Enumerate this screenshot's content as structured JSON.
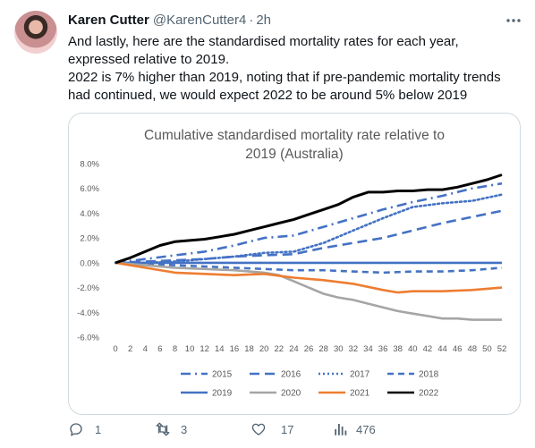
{
  "tweet": {
    "author_name": "Karen Cutter",
    "handle": "@KarenCutter4",
    "separator": "·",
    "time": "2h",
    "text_line1": "And lastly, here are the standardised mortality rates for each year, expressed relative to 2019.",
    "text_line2": "2022 is 7% higher than 2019, noting that if pre-pandemic mortality trends had continued, we would expect 2022 to be around 5% below 2019"
  },
  "actions": {
    "reply_count": "1",
    "retweet_count": "3",
    "like_count": "17",
    "views_count": "476"
  },
  "icons": {
    "more": "more-icon",
    "reply": "reply-icon",
    "retweet": "retweet-icon",
    "like": "heart-icon",
    "views": "analytics-icon"
  },
  "chart_data": {
    "type": "line",
    "title_line1": "Cumulative standardised mortality rate relative to",
    "title_line2": "2019 (Australia)",
    "xlabel": "",
    "ylabel": "",
    "x_ticks": [
      "0",
      "2",
      "4",
      "6",
      "8",
      "10",
      "12",
      "14",
      "16",
      "18",
      "20",
      "22",
      "24",
      "26",
      "28",
      "30",
      "32",
      "34",
      "36",
      "38",
      "40",
      "42",
      "44",
      "46",
      "48",
      "50",
      "52"
    ],
    "y_ticks": [
      "8.0%",
      "6.0%",
      "4.0%",
      "2.0%",
      "0.0%",
      "-2.0%",
      "-4.0%",
      "-6.0%"
    ],
    "ylim": [
      -6.0,
      8.0
    ],
    "xlim": [
      0,
      52
    ],
    "grid": false,
    "legend_placement": "bottom",
    "series": [
      {
        "name": "2015",
        "color": "#4472c4",
        "dash": "dashdot",
        "x": [
          0,
          4,
          8,
          12,
          16,
          20,
          24,
          28,
          32,
          36,
          40,
          44,
          48,
          52
        ],
        "y": [
          0,
          0.3,
          0.6,
          0.9,
          1.4,
          2.0,
          2.2,
          2.9,
          3.6,
          4.3,
          4.9,
          5.4,
          6.0,
          6.4
        ]
      },
      {
        "name": "2016",
        "color": "#4472c4",
        "dash": "dash",
        "x": [
          0,
          4,
          8,
          12,
          16,
          20,
          24,
          28,
          32,
          36,
          40,
          44,
          48,
          52
        ],
        "y": [
          0,
          0.1,
          0.2,
          0.3,
          0.5,
          0.6,
          0.7,
          1.2,
          1.6,
          2.0,
          2.6,
          3.2,
          3.7,
          4.2
        ]
      },
      {
        "name": "2017",
        "color": "#4472c4",
        "dash": "dot",
        "x": [
          0,
          4,
          8,
          12,
          16,
          20,
          24,
          28,
          32,
          36,
          40,
          44,
          48,
          52
        ],
        "y": [
          0,
          0.0,
          0.1,
          0.3,
          0.5,
          0.8,
          0.9,
          1.6,
          2.6,
          3.6,
          4.5,
          4.8,
          5.0,
          5.5
        ]
      },
      {
        "name": "2018",
        "color": "#4472c4",
        "dash": "dashsmall",
        "x": [
          0,
          4,
          8,
          12,
          16,
          20,
          24,
          28,
          32,
          36,
          40,
          44,
          48,
          52
        ],
        "y": [
          0,
          -0.1,
          -0.2,
          -0.3,
          -0.4,
          -0.5,
          -0.6,
          -0.6,
          -0.7,
          -0.8,
          -0.7,
          -0.7,
          -0.6,
          -0.4
        ]
      },
      {
        "name": "2019",
        "color": "#4472c4",
        "dash": "solid",
        "x": [
          0,
          52
        ],
        "y": [
          0,
          0
        ]
      },
      {
        "name": "2020",
        "color": "#a5a5a5",
        "dash": "solid",
        "x": [
          0,
          4,
          8,
          12,
          16,
          20,
          22,
          24,
          26,
          28,
          30,
          32,
          34,
          36,
          38,
          40,
          42,
          44,
          46,
          48,
          50,
          52
        ],
        "y": [
          0,
          -0.2,
          -0.4,
          -0.5,
          -0.6,
          -0.8,
          -1.0,
          -1.5,
          -2.0,
          -2.5,
          -2.8,
          -3.0,
          -3.3,
          -3.6,
          -3.9,
          -4.1,
          -4.3,
          -4.5,
          -4.5,
          -4.6,
          -4.6,
          -4.6
        ]
      },
      {
        "name": "2021",
        "color": "#ed7d31",
        "dash": "solid",
        "x": [
          0,
          4,
          8,
          12,
          16,
          20,
          24,
          28,
          32,
          36,
          38,
          40,
          44,
          48,
          52
        ],
        "y": [
          0,
          -0.4,
          -0.8,
          -0.9,
          -1.0,
          -0.9,
          -1.2,
          -1.4,
          -1.7,
          -2.2,
          -2.4,
          -2.3,
          -2.3,
          -2.2,
          -2.0
        ]
      },
      {
        "name": "2022",
        "color": "#000000",
        "dash": "solid",
        "x": [
          0,
          2,
          4,
          6,
          8,
          10,
          12,
          14,
          16,
          18,
          20,
          22,
          24,
          26,
          28,
          30,
          32,
          34,
          36,
          38,
          40,
          42,
          44,
          46,
          48,
          50,
          52
        ],
        "y": [
          0,
          0.4,
          0.9,
          1.4,
          1.7,
          1.8,
          1.9,
          2.1,
          2.3,
          2.6,
          2.9,
          3.2,
          3.5,
          3.9,
          4.3,
          4.7,
          5.3,
          5.7,
          5.7,
          5.8,
          5.8,
          5.9,
          5.9,
          6.1,
          6.4,
          6.7,
          7.1
        ]
      }
    ]
  }
}
